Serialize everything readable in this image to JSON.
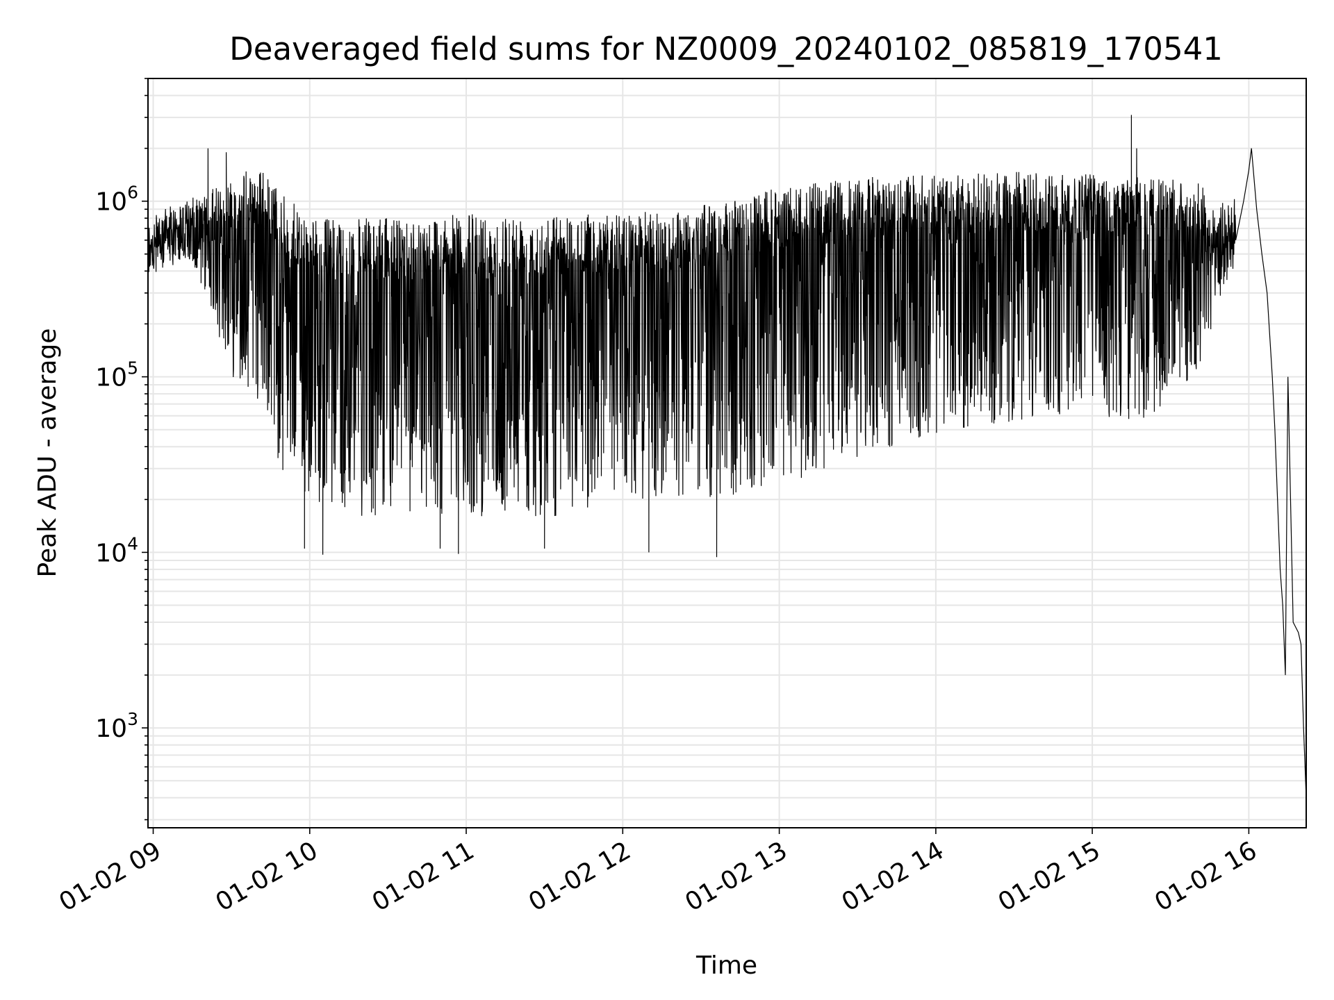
{
  "chart_data": {
    "type": "line",
    "title": "Deaveraged field sums for NZ0009_20240102_085819_170541",
    "xlabel": "Time",
    "ylabel": "Peak ADU - average",
    "y_scale": "log",
    "ylim": [
      270,
      5000000
    ],
    "xlim": [
      "2024-01-02 08:58",
      "2024-01-02 16:22"
    ],
    "grid": true,
    "line_color": "#000000",
    "x_ticks": [
      {
        "value": "2024-01-02 09:00",
        "label": "01-02 09"
      },
      {
        "value": "2024-01-02 10:00",
        "label": "01-02 10"
      },
      {
        "value": "2024-01-02 11:00",
        "label": "01-02 11"
      },
      {
        "value": "2024-01-02 12:00",
        "label": "01-02 12"
      },
      {
        "value": "2024-01-02 13:00",
        "label": "01-02 13"
      },
      {
        "value": "2024-01-02 14:00",
        "label": "01-02 14"
      },
      {
        "value": "2024-01-02 15:00",
        "label": "01-02 15"
      },
      {
        "value": "2024-01-02 16:00",
        "label": "01-02 16"
      }
    ],
    "y_ticks": [
      {
        "value": 1000,
        "base": "10",
        "exp": "3"
      },
      {
        "value": 10000,
        "base": "10",
        "exp": "4"
      },
      {
        "value": 100000,
        "base": "10",
        "exp": "5"
      },
      {
        "value": 1000000,
        "base": "10",
        "exp": "6"
      }
    ],
    "series": [
      {
        "envelope": {
          "x": [
            "2024-01-02 08:58",
            "2024-01-02 09:10",
            "2024-01-02 09:20",
            "2024-01-02 09:30",
            "2024-01-02 09:40",
            "2024-01-02 09:50",
            "2024-01-02 10:00",
            "2024-01-02 10:20",
            "2024-01-02 10:40",
            "2024-01-02 11:00",
            "2024-01-02 11:20",
            "2024-01-02 11:40",
            "2024-01-02 12:00",
            "2024-01-02 12:20",
            "2024-01-02 12:40",
            "2024-01-02 13:00",
            "2024-01-02 13:20",
            "2024-01-02 13:40",
            "2024-01-02 14:00",
            "2024-01-02 14:20",
            "2024-01-02 14:40",
            "2024-01-02 15:00",
            "2024-01-02 15:20",
            "2024-01-02 15:40",
            "2024-01-02 15:50",
            "2024-01-02 16:00"
          ],
          "high": [
            800000,
            1000000,
            1100000,
            1400000,
            1600000,
            1100000,
            800000,
            800000,
            800000,
            850000,
            850000,
            850000,
            850000,
            900000,
            1000000,
            1200000,
            1300000,
            1400000,
            1400000,
            1450000,
            1500000,
            1450000,
            1400000,
            1300000,
            1000000,
            1100000
          ],
          "low": [
            400000,
            500000,
            300000,
            100000,
            80000,
            25000,
            20000,
            16000,
            16000,
            16000,
            16000,
            16000,
            18000,
            20000,
            20000,
            24000,
            30000,
            38000,
            45000,
            50000,
            60000,
            60000,
            55000,
            100000,
            300000,
            500000
          ]
        },
        "spikes": [
          {
            "x": "2024-01-02 09:21",
            "y": 2000000
          },
          {
            "x": "2024-01-02 09:28",
            "y": 1900000
          },
          {
            "x": "2024-01-02 09:40",
            "y": 75000
          },
          {
            "x": "2024-01-02 09:58",
            "y": 10500
          },
          {
            "x": "2024-01-02 10:05",
            "y": 9700
          },
          {
            "x": "2024-01-02 10:50",
            "y": 10500
          },
          {
            "x": "2024-01-02 10:57",
            "y": 9800
          },
          {
            "x": "2024-01-02 11:30",
            "y": 10500
          },
          {
            "x": "2024-01-02 12:10",
            "y": 10000
          },
          {
            "x": "2024-01-02 12:36",
            "y": 9400
          },
          {
            "x": "2024-01-02 15:15",
            "y": 3100000
          },
          {
            "x": "2024-01-02 15:17",
            "y": 2000000
          }
        ],
        "tail": {
          "x": [
            "2024-01-02 15:55",
            "2024-01-02 15:58",
            "2024-01-02 16:00",
            "2024-01-02 16:01",
            "2024-01-02 16:03",
            "2024-01-02 16:05",
            "2024-01-02 16:07",
            "2024-01-02 16:09",
            "2024-01-02 16:10",
            "2024-01-02 16:11",
            "2024-01-02 16:12",
            "2024-01-02 16:13",
            "2024-01-02 16:14",
            "2024-01-02 16:15",
            "2024-01-02 16:17",
            "2024-01-02 16:19",
            "2024-01-02 16:20",
            "2024-01-02 16:21",
            "2024-01-02 16:22"
          ],
          "y": [
            600000,
            1000000,
            1500000,
            2000000,
            900000,
            500000,
            300000,
            100000,
            50000,
            20000,
            8000,
            5000,
            2000,
            100000,
            4000,
            3500,
            3000,
            1000,
            400
          ]
        }
      }
    ]
  }
}
